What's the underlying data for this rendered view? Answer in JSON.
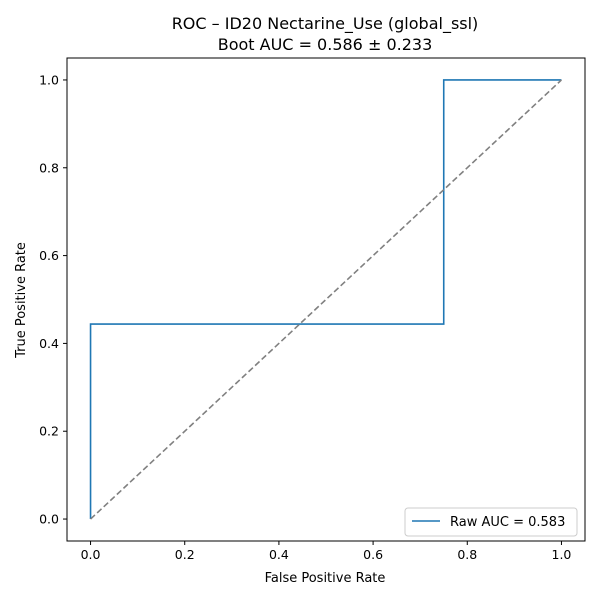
{
  "chart_data": {
    "type": "line",
    "title": "ROC – ID20 Nectarine_Use (global_ssl)",
    "subtitle": "Boot AUC = 0.586 ± 0.233",
    "xlabel": "False Positive Rate",
    "ylabel": "True Positive Rate",
    "xlim": [
      -0.05,
      1.05
    ],
    "ylim": [
      -0.05,
      1.05
    ],
    "x_ticks": [
      0.0,
      0.2,
      0.4,
      0.6,
      0.8,
      1.0
    ],
    "y_ticks": [
      0.0,
      0.2,
      0.4,
      0.6,
      0.8,
      1.0
    ],
    "x_tick_labels": [
      "0.0",
      "0.2",
      "0.4",
      "0.6",
      "0.8",
      "1.0"
    ],
    "y_tick_labels": [
      "0.0",
      "0.2",
      "0.4",
      "0.6",
      "0.8",
      "1.0"
    ],
    "grid": false,
    "legend_position": "lower-right",
    "series": [
      {
        "name": "Raw AUC = 0.583",
        "color": "#1f77b4",
        "style": "solid",
        "x": [
          0.0,
          0.0,
          0.75,
          0.75,
          1.0
        ],
        "y": [
          0.0,
          0.444,
          0.444,
          1.0,
          1.0
        ]
      },
      {
        "color": "#808080",
        "style": "dashed",
        "x": [
          0.0,
          1.0
        ],
        "y": [
          0.0,
          1.0
        ]
      }
    ]
  }
}
